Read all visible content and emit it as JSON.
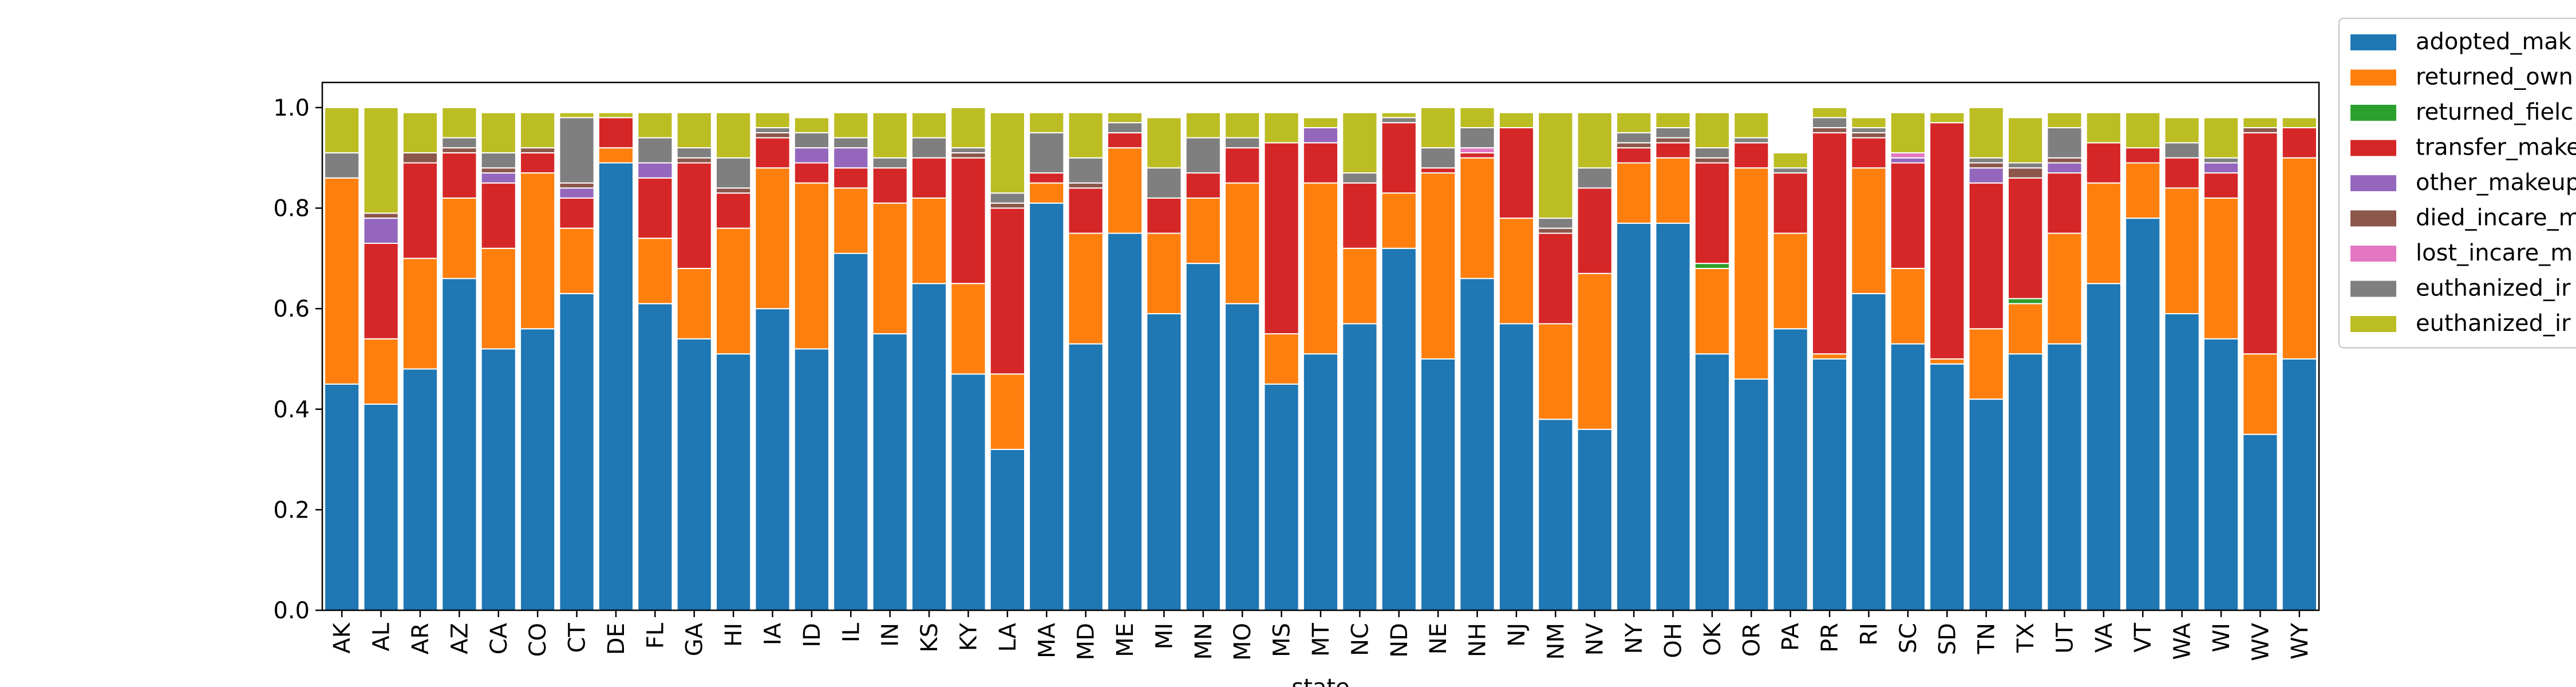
{
  "chart_data": {
    "type": "bar",
    "stacked": true,
    "xlabel": "state",
    "ylabel": "",
    "ylim": [
      0,
      1.05
    ],
    "yticks": [
      0.0,
      0.2,
      0.4,
      0.6,
      0.8,
      1.0
    ],
    "ytick_labels": [
      "0.0",
      "0.2",
      "0.4",
      "0.6",
      "0.8",
      "1.0"
    ],
    "legend_position": "outside-upper-right (partially clipped)",
    "grid": false,
    "categories": [
      "AK",
      "AL",
      "AR",
      "AZ",
      "CA",
      "CO",
      "CT",
      "DE",
      "FL",
      "GA",
      "HI",
      "IA",
      "ID",
      "IL",
      "IN",
      "KS",
      "KY",
      "LA",
      "MA",
      "MD",
      "ME",
      "MI",
      "MN",
      "MO",
      "MS",
      "MT",
      "NC",
      "ND",
      "NE",
      "NH",
      "NJ",
      "NM",
      "NV",
      "NY",
      "OH",
      "OK",
      "OR",
      "PA",
      "PR",
      "RI",
      "SC",
      "SD",
      "TN",
      "TX",
      "UT",
      "VA",
      "VT",
      "WA",
      "WI",
      "WV",
      "WY"
    ],
    "series": [
      {
        "name": "adopted_mak",
        "color": "#1f77b4",
        "values": [
          0.45,
          0.41,
          0.48,
          0.66,
          0.52,
          0.56,
          0.63,
          0.89,
          0.61,
          0.54,
          0.51,
          0.6,
          0.52,
          0.71,
          0.55,
          0.65,
          0.47,
          0.32,
          0.81,
          0.53,
          0.75,
          0.59,
          0.69,
          0.61,
          0.45,
          0.51,
          0.57,
          0.72,
          0.5,
          0.66,
          0.57,
          0.38,
          0.36,
          0.77,
          0.77,
          0.51,
          0.46,
          0.56,
          0.5,
          0.63,
          0.53,
          0.49,
          0.42,
          0.51,
          0.53,
          0.65,
          0.78,
          0.59,
          0.54,
          0.35,
          0.5
        ]
      },
      {
        "name": "returned_own",
        "color": "#ff7f0e",
        "values": [
          0.41,
          0.13,
          0.22,
          0.16,
          0.2,
          0.31,
          0.13,
          0.03,
          0.13,
          0.14,
          0.25,
          0.28,
          0.33,
          0.13,
          0.26,
          0.17,
          0.18,
          0.15,
          0.04,
          0.22,
          0.17,
          0.16,
          0.13,
          0.24,
          0.1,
          0.34,
          0.15,
          0.11,
          0.37,
          0.24,
          0.21,
          0.19,
          0.31,
          0.12,
          0.13,
          0.17,
          0.42,
          0.19,
          0.01,
          0.25,
          0.15,
          0.01,
          0.14,
          0.1,
          0.22,
          0.2,
          0.11,
          0.25,
          0.28,
          0.16,
          0.4
        ]
      },
      {
        "name": "returned_fielc",
        "color": "#2ca02c",
        "values": [
          0,
          0,
          0,
          0,
          0,
          0,
          0,
          0,
          0,
          0,
          0,
          0,
          0,
          0,
          0,
          0,
          0,
          0,
          0,
          0,
          0,
          0,
          0,
          0,
          0,
          0,
          0,
          0,
          0,
          0,
          0,
          0,
          0,
          0,
          0,
          0.01,
          0,
          0,
          0,
          0,
          0,
          0,
          0,
          0.01,
          0,
          0,
          0,
          0,
          0,
          0,
          0
        ]
      },
      {
        "name": "transfer_make",
        "color": "#d62728",
        "values": [
          0,
          0.19,
          0.19,
          0.09,
          0.13,
          0.04,
          0.06,
          0.06,
          0.12,
          0.21,
          0.07,
          0.06,
          0.04,
          0.04,
          0.07,
          0.08,
          0.25,
          0.33,
          0.02,
          0.09,
          0.03,
          0.07,
          0.05,
          0.07,
          0.38,
          0.08,
          0.13,
          0.14,
          0.01,
          0.01,
          0.18,
          0.18,
          0.17,
          0.03,
          0.03,
          0.2,
          0.05,
          0.12,
          0.44,
          0.06,
          0.21,
          0.47,
          0.29,
          0.24,
          0.12,
          0.08,
          0.03,
          0.06,
          0.05,
          0.44,
          0.06
        ]
      },
      {
        "name": "other_makeup",
        "color": "#9467bd",
        "values": [
          0,
          0.05,
          0,
          0,
          0.02,
          0,
          0.02,
          0,
          0.03,
          0,
          0,
          0,
          0.03,
          0.04,
          0,
          0,
          0,
          0,
          0,
          0,
          0,
          0,
          0,
          0,
          0,
          0.03,
          0,
          0,
          0,
          0,
          0,
          0,
          0,
          0,
          0,
          0,
          0,
          0,
          0,
          0,
          0.01,
          0,
          0.03,
          0,
          0.02,
          0,
          0,
          0,
          0.02,
          0,
          0
        ]
      },
      {
        "name": "died_incare_m",
        "color": "#8c564b",
        "values": [
          0,
          0.01,
          0.02,
          0.01,
          0.01,
          0.01,
          0.01,
          0,
          0,
          0.01,
          0.01,
          0.01,
          0,
          0,
          0,
          0,
          0.01,
          0.01,
          0,
          0.01,
          0,
          0,
          0,
          0,
          0,
          0,
          0,
          0,
          0,
          0,
          0,
          0.01,
          0,
          0.01,
          0.01,
          0.01,
          0,
          0,
          0.01,
          0.01,
          0,
          0,
          0.01,
          0.02,
          0.01,
          0,
          0,
          0,
          0,
          0.01,
          0
        ]
      },
      {
        "name": "lost_incare_m",
        "color": "#e377c2",
        "values": [
          0,
          0,
          0,
          0,
          0,
          0,
          0,
          0,
          0,
          0,
          0,
          0,
          0,
          0,
          0,
          0,
          0,
          0,
          0,
          0,
          0,
          0,
          0,
          0,
          0,
          0,
          0,
          0,
          0,
          0.01,
          0,
          0,
          0,
          0,
          0,
          0,
          0,
          0,
          0,
          0,
          0.01,
          0,
          0,
          0,
          0,
          0,
          0,
          0,
          0,
          0,
          0
        ]
      },
      {
        "name": "euthanized_ir",
        "color": "#7f7f7f",
        "values": [
          0.05,
          0,
          0,
          0.02,
          0.03,
          0,
          0.13,
          0,
          0.05,
          0.02,
          0.06,
          0.01,
          0.03,
          0.02,
          0.02,
          0.04,
          0.01,
          0.02,
          0.08,
          0.05,
          0.02,
          0.06,
          0.07,
          0.02,
          0,
          0,
          0.02,
          0.01,
          0.04,
          0.04,
          0,
          0.02,
          0.04,
          0.02,
          0.02,
          0.02,
          0.01,
          0.01,
          0.02,
          0.01,
          0,
          0,
          0.01,
          0.01,
          0.06,
          0,
          0,
          0.03,
          0.01,
          0,
          0
        ]
      },
      {
        "name": "euthanized_ir",
        "color": "#bcbd22",
        "values": [
          0.09,
          0.21,
          0.08,
          0.06,
          0.08,
          0.07,
          0.01,
          0.01,
          0.05,
          0.07,
          0.09,
          0.03,
          0.03,
          0.05,
          0.09,
          0.05,
          0.08,
          0.16,
          0.04,
          0.09,
          0.02,
          0.1,
          0.05,
          0.05,
          0.06,
          0.02,
          0.12,
          0.01,
          0.08,
          0.04,
          0.03,
          0.21,
          0.11,
          0.04,
          0.03,
          0.07,
          0.05,
          0.03,
          0.02,
          0.02,
          0.08,
          0.02,
          0.1,
          0.09,
          0.03,
          0.06,
          0.07,
          0.05,
          0.08,
          0.02,
          0.02
        ]
      }
    ]
  }
}
